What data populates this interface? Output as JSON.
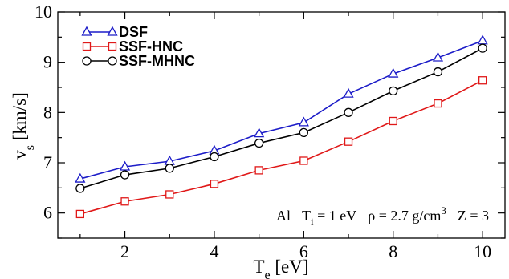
{
  "chart_data": {
    "type": "line",
    "x": [
      1,
      2,
      3,
      4,
      5,
      6,
      7,
      8,
      9,
      10
    ],
    "series": [
      {
        "name": "DSF",
        "color": "#1c1cc8",
        "marker": "triangle",
        "values": [
          6.68,
          6.92,
          7.03,
          7.24,
          7.58,
          7.8,
          8.37,
          8.77,
          9.09,
          9.43
        ]
      },
      {
        "name": "SSF-HNC",
        "color": "#e01818",
        "marker": "square",
        "values": [
          5.98,
          6.23,
          6.37,
          6.58,
          6.85,
          7.04,
          7.42,
          7.83,
          8.18,
          8.64
        ]
      },
      {
        "name": "SSF-MHNC",
        "color": "#000000",
        "marker": "circle",
        "values": [
          6.49,
          6.76,
          6.89,
          7.12,
          7.39,
          7.6,
          8.0,
          8.43,
          8.81,
          9.28
        ]
      }
    ],
    "xlim": [
      0.5,
      10.5
    ],
    "ylim": [
      5.5,
      10
    ],
    "xticks": [
      2,
      4,
      6,
      8,
      10
    ],
    "yticks": [
      6,
      7,
      8,
      9,
      10
    ],
    "xlabel": {
      "main": "T",
      "sub": "e",
      "unit": " [eV]"
    },
    "ylabel": {
      "main": "v",
      "sub": "s",
      "unit": " [km/s]"
    },
    "legend_position": "top-left",
    "annotation": {
      "element": "Al",
      "ti_main": "T",
      "ti_sub": "i",
      "ti_value": " = 1 eV",
      "rho_text": "ρ = 2.7 g/cm",
      "rho_sup": "3",
      "z_text": "Z = 3"
    },
    "grid": false
  }
}
